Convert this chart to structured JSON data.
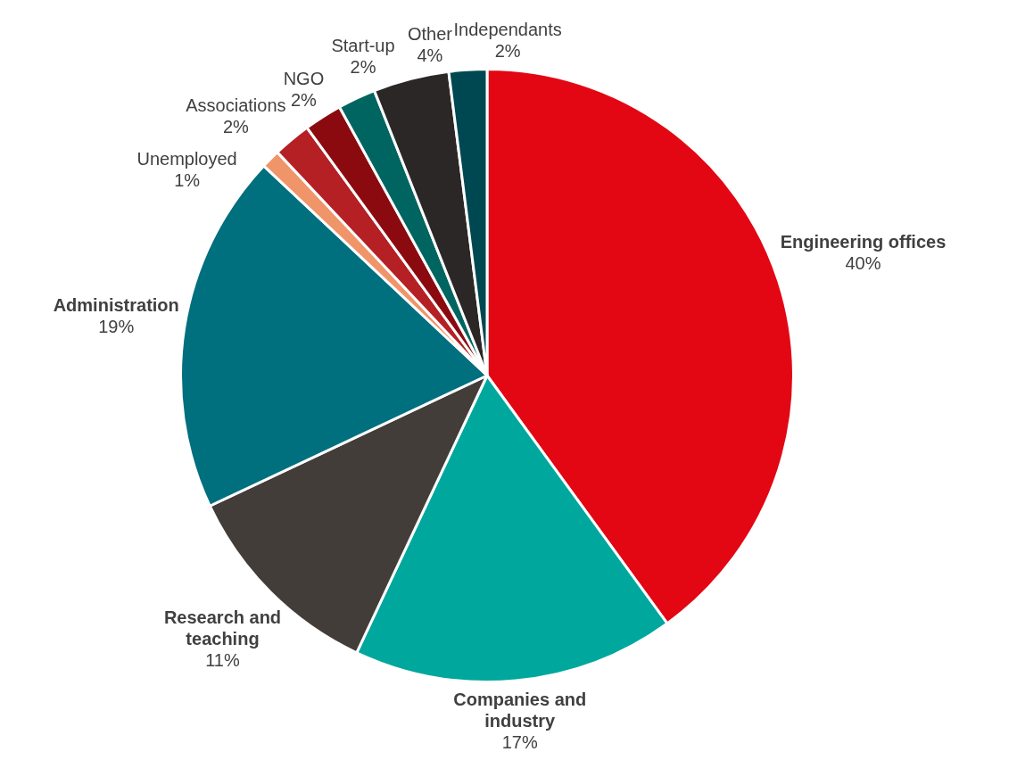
{
  "chart_data": {
    "type": "pie",
    "categories": [
      "Engineering offices",
      "Companies and industry",
      "Research and teaching",
      "Administration",
      "Unemployed",
      "Associations",
      "NGO",
      "Start-up",
      "Other",
      "Independants"
    ],
    "values": [
      40,
      17,
      11,
      19,
      1,
      2,
      2,
      2,
      4,
      2
    ],
    "colors": [
      "#e30613",
      "#00a79d",
      "#433d3a",
      "#006f7e",
      "#f0956a",
      "#b52025",
      "#8b0a10",
      "#006560",
      "#2b2726",
      "#004851"
    ],
    "value_labels": [
      "40%",
      "17%",
      "11%",
      "19%",
      "1%",
      "2%",
      "2%",
      "2%",
      "4%",
      "2%"
    ],
    "legend": false
  }
}
